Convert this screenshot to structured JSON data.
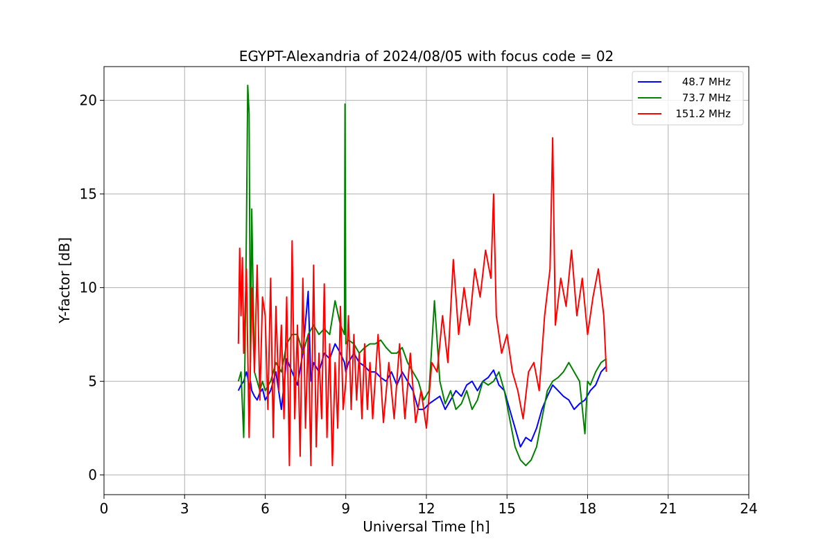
{
  "chart_data": {
    "type": "line",
    "title": "EGYPT-Alexandria of 2024/08/05 with focus code = 02",
    "xlabel": "Universal Time [h]",
    "ylabel": "Y-factor [dB]",
    "xlim": [
      0,
      24
    ],
    "ylim": [
      -1.05,
      21.8
    ],
    "xticks": [
      0,
      3,
      6,
      9,
      12,
      15,
      18,
      21,
      24
    ],
    "yticks": [
      0,
      5,
      10,
      15,
      20
    ],
    "grid": true,
    "legend_position": "top-right",
    "series": [
      {
        "name": "  48.7 MHz",
        "color": "#0000ff",
        "x": [
          5.0,
          5.1,
          5.2,
          5.3,
          5.35,
          5.4,
          5.45,
          5.5,
          5.6,
          5.7,
          5.8,
          5.9,
          6.0,
          6.2,
          6.4,
          6.6,
          6.8,
          7.0,
          7.2,
          7.4,
          7.6,
          7.7,
          7.8,
          8.0,
          8.2,
          8.4,
          8.6,
          8.8,
          8.95,
          9.0,
          9.1,
          9.3,
          9.5,
          9.7,
          9.9,
          10.1,
          10.3,
          10.5,
          10.7,
          10.9,
          11.1,
          11.3,
          11.5,
          11.7,
          11.9,
          12.1,
          12.3,
          12.5,
          12.7,
          12.9,
          13.1,
          13.3,
          13.5,
          13.7,
          13.9,
          14.1,
          14.3,
          14.5,
          14.7,
          14.9,
          15.1,
          15.3,
          15.5,
          15.7,
          15.9,
          16.1,
          16.3,
          16.5,
          16.7,
          16.9,
          17.1,
          17.3,
          17.5,
          17.7,
          17.9,
          18.1,
          18.3,
          18.5,
          18.7
        ],
        "y": [
          4.5,
          4.8,
          5.0,
          5.5,
          5.2,
          4.6,
          5.0,
          4.5,
          4.2,
          4.0,
          4.4,
          4.6,
          4.0,
          4.5,
          5.5,
          3.5,
          6.2,
          5.5,
          4.8,
          6.5,
          9.8,
          5.0,
          6.0,
          5.5,
          6.5,
          6.2,
          7.0,
          6.5,
          6.0,
          5.5,
          6.0,
          6.5,
          6.0,
          5.8,
          5.5,
          5.5,
          5.2,
          5.0,
          5.5,
          4.8,
          5.5,
          5.0,
          4.5,
          3.5,
          3.5,
          3.8,
          4.0,
          4.2,
          3.5,
          4.0,
          4.5,
          4.2,
          4.8,
          5.0,
          4.5,
          5.0,
          5.2,
          5.6,
          4.8,
          4.5,
          3.5,
          2.5,
          1.5,
          2.0,
          1.8,
          2.5,
          3.5,
          4.2,
          4.8,
          4.5,
          4.2,
          4.0,
          3.5,
          3.8,
          4.0,
          4.5,
          4.8,
          5.5,
          5.8
        ]
      },
      {
        "name": "  73.7 MHz",
        "color": "#008000",
        "x": [
          5.0,
          5.1,
          5.2,
          5.25,
          5.3,
          5.35,
          5.4,
          5.45,
          5.5,
          5.6,
          5.7,
          5.8,
          5.9,
          6.0,
          6.2,
          6.4,
          6.6,
          6.8,
          7.0,
          7.2,
          7.4,
          7.6,
          7.8,
          8.0,
          8.2,
          8.4,
          8.6,
          8.8,
          8.95,
          8.97,
          9.0,
          9.1,
          9.3,
          9.5,
          9.7,
          9.9,
          10.1,
          10.3,
          10.5,
          10.7,
          10.9,
          11.1,
          11.3,
          11.5,
          11.7,
          11.9,
          12.1,
          12.3,
          12.5,
          12.7,
          12.9,
          13.1,
          13.3,
          13.5,
          13.7,
          13.9,
          14.1,
          14.3,
          14.5,
          14.7,
          14.9,
          15.1,
          15.3,
          15.5,
          15.7,
          15.9,
          16.1,
          16.3,
          16.5,
          16.7,
          16.9,
          17.1,
          17.3,
          17.5,
          17.7,
          17.9,
          18.0,
          18.1,
          18.3,
          18.5,
          18.7
        ],
        "y": [
          5.0,
          5.5,
          2.0,
          6.5,
          13.0,
          20.8,
          19.3,
          6.0,
          14.2,
          5.5,
          5.0,
          4.5,
          5.0,
          4.5,
          5.0,
          6.0,
          5.5,
          7.0,
          7.5,
          7.5,
          6.5,
          7.5,
          8.0,
          7.5,
          7.8,
          7.5,
          9.3,
          8.0,
          7.5,
          19.8,
          7.0,
          7.2,
          7.0,
          6.5,
          6.8,
          7.0,
          7.0,
          7.2,
          6.8,
          6.5,
          6.5,
          6.8,
          6.0,
          5.5,
          5.0,
          4.0,
          4.5,
          9.3,
          5.0,
          3.8,
          4.5,
          3.5,
          3.8,
          4.5,
          3.5,
          4.0,
          5.0,
          4.8,
          5.0,
          5.5,
          4.5,
          3.0,
          1.5,
          0.8,
          0.5,
          0.8,
          1.5,
          3.0,
          4.5,
          5.0,
          5.2,
          5.5,
          6.0,
          5.5,
          5.0,
          2.2,
          5.0,
          4.8,
          5.5,
          6.0,
          6.2
        ]
      },
      {
        "name": "151.2 MHz",
        "color": "#ff0000",
        "x": [
          5.0,
          5.05,
          5.1,
          5.15,
          5.2,
          5.3,
          5.4,
          5.5,
          5.6,
          5.7,
          5.8,
          5.9,
          6.0,
          6.1,
          6.2,
          6.3,
          6.4,
          6.5,
          6.6,
          6.7,
          6.8,
          6.9,
          7.0,
          7.1,
          7.2,
          7.3,
          7.4,
          7.5,
          7.6,
          7.7,
          7.8,
          7.9,
          8.0,
          8.1,
          8.2,
          8.3,
          8.4,
          8.5,
          8.6,
          8.7,
          8.8,
          8.9,
          9.0,
          9.1,
          9.2,
          9.3,
          9.4,
          9.5,
          9.6,
          9.7,
          9.8,
          9.9,
          10.0,
          10.2,
          10.4,
          10.6,
          10.8,
          11.0,
          11.2,
          11.4,
          11.6,
          11.8,
          12.0,
          12.2,
          12.4,
          12.6,
          12.8,
          13.0,
          13.2,
          13.4,
          13.6,
          13.8,
          14.0,
          14.2,
          14.4,
          14.5,
          14.6,
          14.8,
          15.0,
          15.2,
          15.4,
          15.6,
          15.8,
          16.0,
          16.2,
          16.4,
          16.6,
          16.7,
          16.8,
          17.0,
          17.2,
          17.4,
          17.6,
          17.8,
          18.0,
          18.2,
          18.4,
          18.6,
          18.7
        ],
        "y": [
          7.0,
          12.1,
          8.5,
          11.6,
          6.5,
          11.0,
          2.0,
          10.0,
          5.5,
          11.2,
          4.0,
          9.5,
          8.5,
          3.5,
          10.5,
          2.0,
          9.0,
          4.5,
          8.0,
          3.0,
          9.5,
          0.5,
          12.5,
          3.0,
          8.0,
          1.0,
          10.5,
          2.5,
          7.5,
          0.5,
          11.2,
          1.5,
          6.5,
          3.0,
          10.2,
          2.0,
          7.0,
          0.5,
          6.0,
          2.5,
          9.0,
          3.5,
          5.0,
          8.5,
          3.5,
          7.5,
          4.0,
          6.5,
          3.0,
          7.0,
          3.5,
          6.0,
          3.0,
          7.5,
          2.8,
          6.0,
          3.0,
          7.0,
          3.0,
          6.5,
          2.8,
          4.5,
          2.5,
          6.0,
          5.5,
          8.5,
          6.0,
          11.5,
          7.5,
          10.0,
          8.0,
          11.0,
          9.5,
          12.0,
          10.5,
          15.0,
          8.5,
          6.5,
          7.5,
          5.5,
          4.5,
          3.0,
          5.5,
          6.0,
          4.5,
          8.5,
          11.0,
          18.0,
          8.0,
          10.5,
          9.0,
          12.0,
          8.5,
          10.5,
          7.5,
          9.5,
          11.0,
          8.5,
          5.5
        ]
      }
    ]
  }
}
